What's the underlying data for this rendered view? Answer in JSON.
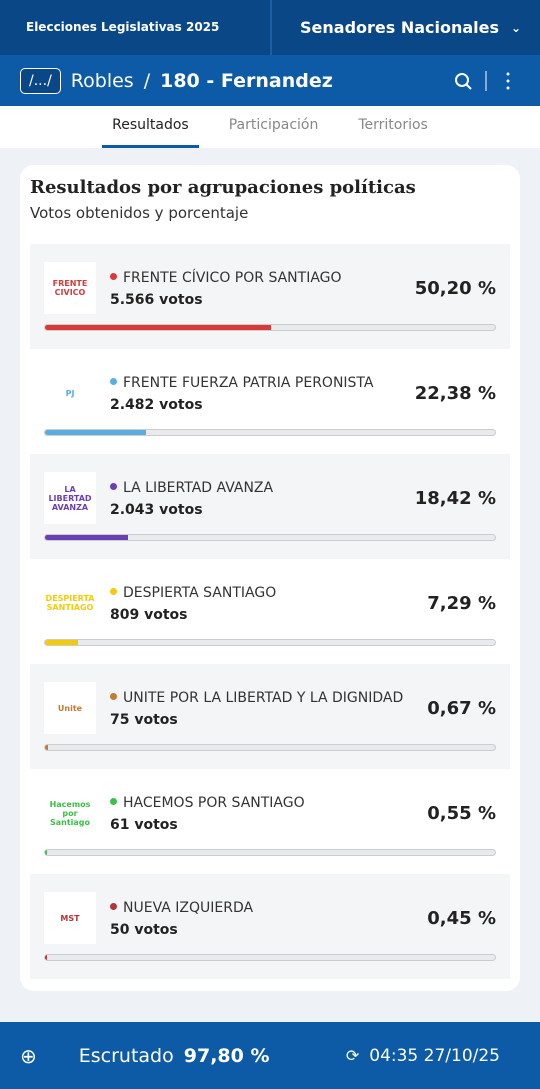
{
  "header": {
    "logo": "Elecciones Legislativas 2025",
    "category": "Senadores Nacionales"
  },
  "breadcrumb": {
    "root": "/.../",
    "district": "Robles",
    "separator": "/",
    "circuit": "180 - Fernandez"
  },
  "tabs": [
    "Resultados",
    "Participación",
    "Territorios"
  ],
  "card": {
    "title": "Resultados por agrupaciones políticas",
    "subtitle": "Votos obtenidos y porcentaje"
  },
  "parties": [
    {
      "name": "FRENTE CÍVICO POR SANTIAGO",
      "votes": "5.566 votos",
      "percent": {
        "value": 50.2,
        "label": "50,20 %"
      },
      "color": "#d9393b",
      "logo_text": "FRENTE CIVICO"
    },
    {
      "name": "FRENTE FUERZA PATRIA PERONISTA",
      "votes": "2.482 votos",
      "percent": {
        "value": 22.38,
        "label": "22,38 %"
      },
      "color": "#5aaedf",
      "logo_text": "PJ"
    },
    {
      "name": "LA LIBERTAD AVANZA",
      "votes": "2.043 votos",
      "percent": {
        "value": 18.42,
        "label": "18,42 %"
      },
      "color": "#6b3fb4",
      "logo_text": "LA LIBERTAD AVANZA"
    },
    {
      "name": "DESPIERTA SANTIAGO",
      "votes": "809 votos",
      "percent": {
        "value": 7.29,
        "label": "7,29 %"
      },
      "color": "#f2cc0c",
      "logo_text": "DESPIERTA SANTIAGO"
    },
    {
      "name": "UNITE POR LA LIBERTAD Y LA DIGNIDAD",
      "votes": "75 votos",
      "percent": {
        "value": 0.67,
        "label": "0,67 %"
      },
      "color": "#c77a2e",
      "logo_text": "Unite"
    },
    {
      "name": "HACEMOS POR SANTIAGO",
      "votes": "61 votos",
      "percent": {
        "value": 0.55,
        "label": "0,55 %"
      },
      "color": "#3cc04a",
      "logo_text": "Hacemos por Santiago"
    },
    {
      "name": "NUEVA IZQUIERDA",
      "votes": "50 votos",
      "percent": {
        "value": 0.45,
        "label": "0,45 %"
      },
      "color": "#b0363c",
      "logo_text": "MST"
    }
  ],
  "footer": {
    "label": "Escrutado",
    "value": "97,80 %",
    "timestamp": "04:35 27/10/25"
  }
}
